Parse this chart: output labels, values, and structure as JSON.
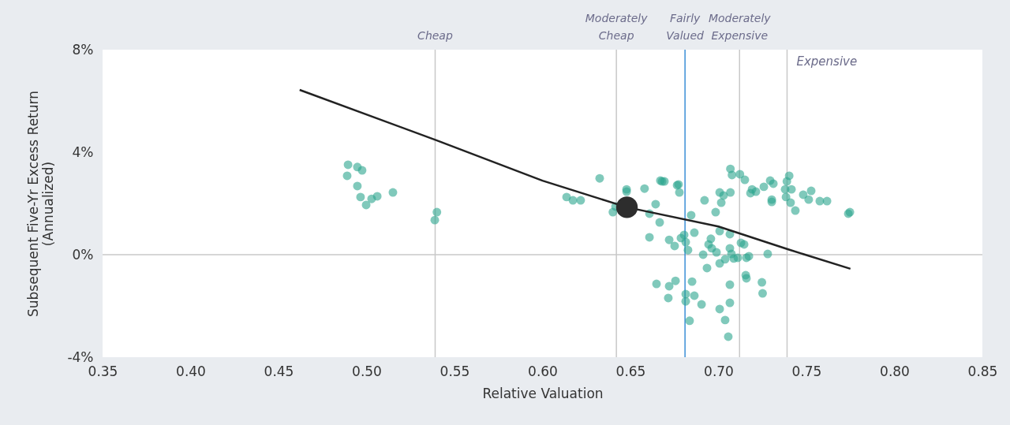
{
  "chart_data": {
    "type": "scatter",
    "xlabel": "Relative Valuation",
    "ylabel": "Subsequent Five-Yr Excess Return (Annualized)",
    "xlim": [
      0.35,
      0.85
    ],
    "ylim": [
      -4,
      8
    ],
    "xticks": [
      {
        "value": 0.35,
        "label": "0.35"
      },
      {
        "value": 0.4,
        "label": "0.40"
      },
      {
        "value": 0.45,
        "label": "0.45"
      },
      {
        "value": 0.5,
        "label": "0.50"
      },
      {
        "value": 0.55,
        "label": "0.55"
      },
      {
        "value": 0.6,
        "label": "0.60"
      },
      {
        "value": 0.65,
        "label": "0.65"
      },
      {
        "value": 0.7,
        "label": "0.70"
      },
      {
        "value": 0.75,
        "label": "0.75"
      },
      {
        "value": 0.8,
        "label": "0.80"
      },
      {
        "value": 0.85,
        "label": "0.85"
      }
    ],
    "yticks": [
      {
        "value": -4,
        "label": "-4%"
      },
      {
        "value": 0,
        "label": "0%"
      },
      {
        "value": 4,
        "label": "4%"
      },
      {
        "value": 8,
        "label": "8%"
      }
    ],
    "grid": false,
    "series": [
      {
        "color": "#2ca58d",
        "x": [
          0.4895,
          0.4948,
          0.4975,
          0.489,
          0.4948,
          0.4966,
          0.4998,
          0.5029,
          0.5061,
          0.515,
          0.54,
          0.5388,
          0.6325,
          0.6137,
          0.6173,
          0.6217,
          0.64,
          0.6415,
          0.6478,
          0.6478,
          0.658,
          0.667,
          0.668,
          0.6643,
          0.6608,
          0.6666,
          0.6608,
          0.672,
          0.6751,
          0.6648,
          0.672,
          0.6715,
          0.6756,
          0.6765,
          0.6693,
          0.6773,
          0.6778,
          0.6921,
          0.6845,
          0.6984,
          0.7068,
          0.7077,
          0.7122,
          0.715,
          0.7007,
          0.7029,
          0.7068,
          0.7016,
          0.7191,
          0.7182,
          0.7213,
          0.7258,
          0.7294,
          0.7312,
          0.7303,
          0.7303,
          0.7389,
          0.7402,
          0.7379,
          0.7384,
          0.7415,
          0.741,
          0.7437,
          0.7482,
          0.7527,
          0.7513,
          0.7576,
          0.7617,
          0.7738,
          0.7747,
          0.6787,
          0.6805,
          0.6814,
          0.6827,
          0.6863,
          0.6913,
          0.6935,
          0.6957,
          0.6944,
          0.6962,
          0.6989,
          0.7007,
          0.7007,
          0.7038,
          0.7065,
          0.7065,
          0.7074,
          0.7087,
          0.711,
          0.7128,
          0.7146,
          0.7159,
          0.7173,
          0.728,
          0.7155,
          0.7159,
          0.7247,
          0.7251,
          0.7065,
          0.7065,
          0.7007,
          0.7038,
          0.7056,
          0.6904,
          0.6863,
          0.685,
          0.6836,
          0.6814,
          0.6814
        ],
        "values": [
          3.51,
          3.42,
          3.29,
          3.08,
          2.68,
          2.25,
          1.94,
          2.18,
          2.28,
          2.43,
          1.66,
          1.35,
          2.98,
          2.25,
          2.12,
          2.12,
          1.66,
          1.88,
          2.55,
          2.46,
          2.58,
          2.89,
          2.86,
          1.97,
          1.6,
          1.26,
          0.68,
          0.58,
          0.34,
          -1.14,
          -1.23,
          -1.69,
          -1.02,
          2.71,
          2.86,
          2.74,
          2.43,
          2.12,
          1.54,
          1.66,
          3.35,
          3.11,
          3.14,
          2.92,
          2.43,
          2.31,
          2.43,
          2.03,
          2.55,
          2.4,
          2.46,
          2.65,
          2.89,
          2.77,
          2.15,
          2.06,
          2.86,
          3.08,
          2.55,
          2.25,
          2.55,
          2.03,
          1.72,
          2.34,
          2.49,
          2.15,
          2.09,
          2.09,
          1.6,
          1.66,
          0.65,
          0.77,
          0.49,
          0.18,
          0.86,
          0,
          -0.52,
          0.62,
          0.4,
          0.25,
          0.09,
          0.92,
          -0.34,
          -0.18,
          0.8,
          0.25,
          0.03,
          -0.15,
          -0.12,
          0.46,
          0.4,
          -0.12,
          -0.06,
          0.03,
          -0.8,
          -0.92,
          -1.08,
          -1.51,
          -1.17,
          -1.88,
          -2.12,
          -2.55,
          -3.2,
          -1.94,
          -1.6,
          -1.05,
          -2.58,
          -1.82,
          -1.54
        ]
      },
      {
        "color": "#2d2d2d",
        "x": [
          0.648
        ],
        "values": [
          1.85
        ]
      },
      {
        "type": "line",
        "color": "#222222",
        "x": [
          0.462,
          0.54,
          0.6,
          0.648,
          0.7,
          0.74,
          0.775
        ],
        "values": [
          6.43,
          4.46,
          2.89,
          1.85,
          1.1,
          0.2,
          -0.55
        ]
      }
    ],
    "ref_lines": [
      {
        "axis": "y",
        "value": 0,
        "color": "#c8c8c8"
      },
      {
        "axis": "x",
        "value": 0.539,
        "label": "Cheap",
        "color": "#c8c8c8"
      },
      {
        "axis": "x",
        "value": 0.642,
        "label": "Moderately Cheap",
        "color": "#c8c8c8"
      },
      {
        "axis": "x",
        "value": 0.681,
        "label": "Fairly Valued",
        "color": "#3a8fd6"
      },
      {
        "axis": "x",
        "value": 0.712,
        "label": "Moderately Expensive",
        "color": "#c8c8c8"
      },
      {
        "axis": "x",
        "value": 0.739,
        "label": "Expensive",
        "color": "#c8c8c8"
      }
    ]
  }
}
